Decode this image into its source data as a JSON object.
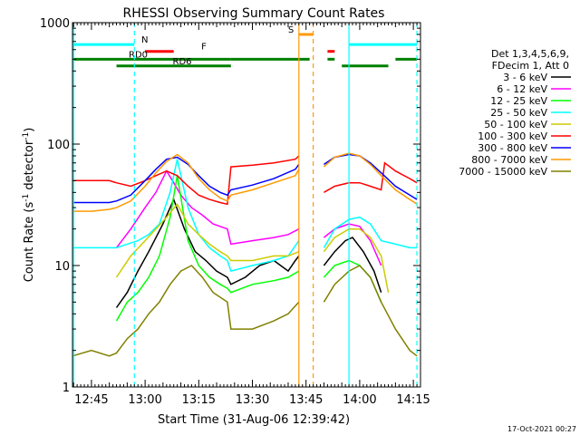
{
  "chart_data": {
    "type": "line",
    "title": "RHESSI Observing Summary Count Rates",
    "xlabel": "Start Time (31-Aug-06 12:39:42)",
    "ylabel_main": "Count Rate (s",
    "ylabel_sup1": "-1",
    "ylabel_mid": " detector",
    "ylabel_sup2": "-1",
    "ylabel_end": ")",
    "yscale": "log",
    "xlim": [
      "12:39:42",
      "14:17:00"
    ],
    "ylim": [
      1,
      1000
    ],
    "xticks": [
      {
        "t": "12:45",
        "label": "12:45"
      },
      {
        "t": "13:00",
        "label": "13:00"
      },
      {
        "t": "13:15",
        "label": "13:15"
      },
      {
        "t": "13:30",
        "label": "13:30"
      },
      {
        "t": "13:45",
        "label": "13:45"
      },
      {
        "t": "14:00",
        "label": "14:00"
      },
      {
        "t": "14:15",
        "label": "14:15"
      }
    ],
    "yticks": [
      {
        "v": 1,
        "label": "1"
      },
      {
        "v": 10,
        "label": "10"
      },
      {
        "v": 100,
        "label": "100"
      },
      {
        "v": 1000,
        "label": "1000"
      }
    ],
    "legend_header": [
      "Det 1,3,4,5,6,9,",
      "FDecim 1, Att 0"
    ],
    "legend_placement": "right",
    "series": [
      {
        "name": "3 - 6 keV",
        "color": "#000000",
        "x": [
          "12:52",
          "12:55",
          "12:58",
          "13:01",
          "13:05",
          "13:08",
          "13:11",
          "13:14",
          "13:17",
          "13:20",
          "13:23",
          "13:24",
          "13:28",
          "13:32",
          "13:36",
          "13:40",
          "13:42",
          "13:43"
        ],
        "y": [
          4.5,
          6,
          9,
          13,
          22,
          35,
          20,
          13,
          11,
          9,
          8,
          7,
          8,
          10,
          11,
          9,
          11,
          12
        ]
      },
      {
        "name": "3 - 6 keV b",
        "color": "#000000",
        "x": [
          "13:50",
          "13:53",
          "13:56",
          "13:58",
          "14:01",
          "14:04",
          "14:06"
        ],
        "y": [
          10,
          13,
          16,
          17,
          13,
          9,
          6
        ]
      },
      {
        "name": "6 - 12 keV",
        "color": "#ff00ff",
        "x": [
          "12:52",
          "12:56",
          "13:00",
          "13:03",
          "13:06",
          "13:08",
          "13:10",
          "13:13",
          "13:16",
          "13:19",
          "13:23",
          "13:24",
          "13:30",
          "13:36",
          "13:40",
          "13:43"
        ],
        "y": [
          14,
          20,
          30,
          40,
          60,
          48,
          38,
          30,
          26,
          22,
          20,
          15,
          16,
          17,
          18,
          20
        ]
      },
      {
        "name": "6 - 12 keV b",
        "color": "#ff00ff",
        "x": [
          "13:50",
          "13:53",
          "13:57",
          "14:00",
          "14:03",
          "14:06"
        ],
        "y": [
          17,
          20,
          22,
          21,
          16,
          10
        ]
      },
      {
        "name": "12 - 25 keV",
        "color": "#00ff00",
        "x": [
          "12:52",
          "12:55",
          "12:58",
          "13:01",
          "13:04",
          "13:07",
          "13:09",
          "13:12",
          "13:15",
          "13:18",
          "13:21",
          "13:23",
          "13:24",
          "13:30",
          "13:36",
          "13:40",
          "13:43"
        ],
        "y": [
          3.5,
          5,
          6,
          8,
          12,
          25,
          55,
          16,
          10,
          8,
          7,
          6.5,
          6,
          7,
          7.5,
          8,
          9
        ]
      },
      {
        "name": "12 - 25 keV b",
        "color": "#00ff00",
        "x": [
          "13:50",
          "13:53",
          "13:57",
          "14:00",
          "14:03",
          "14:06"
        ],
        "y": [
          8,
          10,
          11,
          10,
          8,
          5
        ]
      },
      {
        "name": "25 - 50 keV",
        "color": "#00ffff",
        "x": [
          "12:39:42",
          "12:45",
          "12:50",
          "12:52",
          "12:55",
          "12:58",
          "13:01",
          "13:04",
          "13:07",
          "13:09",
          "13:12",
          "13:15",
          "13:18",
          "13:21",
          "13:23",
          "13:24",
          "13:30",
          "13:36",
          "13:40",
          "13:43"
        ],
        "y": [
          14,
          14,
          14,
          14,
          15,
          16,
          18,
          22,
          40,
          75,
          30,
          18,
          14,
          12,
          11,
          9,
          10,
          11,
          12,
          16
        ]
      },
      {
        "name": "25 - 50 keV b",
        "color": "#00ffff",
        "x": [
          "13:50",
          "13:53",
          "13:57",
          "14:00",
          "14:03",
          "14:06",
          "14:10",
          "14:14",
          "14:16"
        ],
        "y": [
          14,
          20,
          24,
          25,
          22,
          16,
          15,
          14,
          14
        ]
      },
      {
        "name": "50 - 100 keV",
        "color": "#cccc00",
        "x": [
          "12:52",
          "12:56",
          "13:00",
          "13:03",
          "13:06",
          "13:09",
          "13:12",
          "13:15",
          "13:18",
          "13:21",
          "13:23",
          "13:24",
          "13:30",
          "13:36",
          "13:40",
          "13:43"
        ],
        "y": [
          8,
          12,
          16,
          20,
          25,
          32,
          22,
          18,
          15,
          13,
          12,
          11,
          11,
          12,
          12,
          13
        ]
      },
      {
        "name": "50 - 100 keV b",
        "color": "#cccc00",
        "x": [
          "13:50",
          "13:53",
          "13:57",
          "14:00",
          "14:03",
          "14:06",
          "14:08"
        ],
        "y": [
          13,
          17,
          20,
          20,
          17,
          12,
          6
        ]
      },
      {
        "name": "100 - 300 keV",
        "color": "#ff0000",
        "x": [
          "12:39:42",
          "12:45",
          "12:50",
          "12:52",
          "12:56",
          "13:00",
          "13:03",
          "13:06",
          "13:09",
          "13:12",
          "13:15",
          "13:18",
          "13:21",
          "13:23",
          "13:24",
          "13:30",
          "13:36",
          "13:42",
          "13:43"
        ],
        "y": [
          50,
          50,
          50,
          48,
          45,
          50,
          55,
          60,
          55,
          45,
          38,
          35,
          33,
          32,
          65,
          67,
          70,
          75,
          80
        ]
      },
      {
        "name": "100 - 300 keV b",
        "color": "#ff0000",
        "x": [
          "13:50",
          "13:53",
          "13:57",
          "14:00",
          "14:03",
          "14:06",
          "14:07",
          "14:10",
          "14:14",
          "14:16"
        ],
        "y": [
          40,
          45,
          48,
          48,
          45,
          42,
          70,
          60,
          52,
          48
        ]
      },
      {
        "name": "300 - 800 keV",
        "color": "#0000ff",
        "x": [
          "12:39:42",
          "12:45",
          "12:50",
          "12:52",
          "12:56",
          "13:00",
          "13:03",
          "13:06",
          "13:09",
          "13:12",
          "13:15",
          "13:18",
          "13:21",
          "13:23",
          "13:24",
          "13:30",
          "13:36",
          "13:42",
          "13:43"
        ],
        "y": [
          33,
          33,
          33,
          34,
          38,
          50,
          62,
          75,
          78,
          68,
          55,
          45,
          40,
          38,
          42,
          46,
          52,
          62,
          68
        ]
      },
      {
        "name": "300 - 800 keV b",
        "color": "#0000ff",
        "x": [
          "13:50",
          "13:53",
          "13:57",
          "14:00",
          "14:03",
          "14:06",
          "14:10",
          "14:14",
          "14:16"
        ],
        "y": [
          68,
          78,
          82,
          80,
          70,
          58,
          45,
          38,
          35
        ]
      },
      {
        "name": "800 - 7000 keV",
        "color": "#ff9900",
        "x": [
          "12:39:42",
          "12:45",
          "12:50",
          "12:52",
          "12:56",
          "13:00",
          "13:03",
          "13:06",
          "13:09",
          "13:12",
          "13:15",
          "13:18",
          "13:21",
          "13:23",
          "13:24",
          "13:30",
          "13:36",
          "13:42",
          "13:43"
        ],
        "y": [
          28,
          28,
          29,
          30,
          34,
          45,
          58,
          72,
          82,
          70,
          52,
          42,
          36,
          34,
          38,
          42,
          48,
          55,
          62
        ]
      },
      {
        "name": "800 - 7000 keV b",
        "color": "#ff9900",
        "x": [
          "13:50",
          "13:53",
          "13:57",
          "14:00",
          "14:03",
          "14:06",
          "14:10",
          "14:14",
          "14:16"
        ],
        "y": [
          65,
          78,
          84,
          80,
          68,
          55,
          42,
          35,
          32
        ]
      },
      {
        "name": "7000 - 15000 keV",
        "color": "#808000",
        "x": [
          "12:39:42",
          "12:45",
          "12:50",
          "12:52",
          "12:55",
          "12:58",
          "13:01",
          "13:04",
          "13:07",
          "13:10",
          "13:13",
          "13:16",
          "13:19",
          "13:23",
          "13:24",
          "13:30",
          "13:36",
          "13:40",
          "13:43"
        ],
        "y": [
          1.8,
          2,
          1.8,
          1.9,
          2.5,
          3,
          4,
          5,
          7,
          9,
          10,
          8,
          6,
          5,
          3,
          3,
          3.5,
          4,
          5
        ]
      },
      {
        "name": "7000 - 15000 keV b",
        "color": "#808000",
        "x": [
          "13:50",
          "13:53",
          "13:57",
          "14:00",
          "14:03",
          "14:06",
          "14:10",
          "14:14",
          "14:16"
        ],
        "y": [
          5,
          7,
          9,
          10,
          8,
          5,
          3,
          2,
          1.8
        ]
      }
    ],
    "legend_entries": [
      {
        "label": "3 - 6 keV",
        "color": "#000000"
      },
      {
        "label": "6 - 12 keV",
        "color": "#ff00ff"
      },
      {
        "label": "12 - 25 keV",
        "color": "#00ff00"
      },
      {
        "label": "25 - 50 keV",
        "color": "#00ffff"
      },
      {
        "label": "50 - 100 keV",
        "color": "#cccc00"
      },
      {
        "label": "100 - 300 keV",
        "color": "#ff0000"
      },
      {
        "label": "300 - 800 keV",
        "color": "#0000ff"
      },
      {
        "label": "800 - 7000 keV",
        "color": "#ff9900"
      },
      {
        "label": "7000 - 15000 keV",
        "color": "#808000"
      }
    ],
    "flag_bars": [
      {
        "label": "N",
        "color": "#00ffff",
        "y": 660,
        "segments": [
          [
            "12:39:42",
            "12:57"
          ],
          [
            "13:57",
            "14:16"
          ]
        ]
      },
      {
        "label": "S",
        "color": "#ff9900",
        "y": 800,
        "segments": [
          [
            "13:43",
            "13:47"
          ]
        ]
      },
      {
        "label": "F",
        "color": "#ff0000",
        "y": 580,
        "segments": [
          [
            "13:00",
            "13:08"
          ],
          [
            "13:51",
            "13:53"
          ]
        ]
      },
      {
        "label": "RD0",
        "color": "#008000",
        "y": 500,
        "segments": [
          [
            "12:39:42",
            "13:24"
          ],
          [
            "13:24",
            "13:46"
          ],
          [
            "13:51",
            "13:53"
          ],
          [
            "14:10",
            "14:16"
          ]
        ]
      },
      {
        "label": "RD6",
        "color": "#008000",
        "y": 440,
        "segments": [
          [
            "12:52",
            "13:24"
          ],
          [
            "13:55",
            "14:08"
          ]
        ]
      }
    ],
    "vlines": [
      {
        "t": "12:57",
        "color": "#00ffff",
        "style": "dashed"
      },
      {
        "t": "13:57",
        "color": "#00ffff",
        "style": "solid"
      },
      {
        "t": "14:16",
        "color": "#00ffff",
        "style": "dashed"
      },
      {
        "t": "13:43",
        "color": "#ff9900",
        "style": "solid"
      },
      {
        "t": "13:47",
        "color": "#ff9900",
        "style": "dashed"
      },
      {
        "t": "12:40",
        "color": "#00ffff",
        "style": "solid"
      }
    ],
    "timestamp": "17-Oct-2021 00:27"
  }
}
